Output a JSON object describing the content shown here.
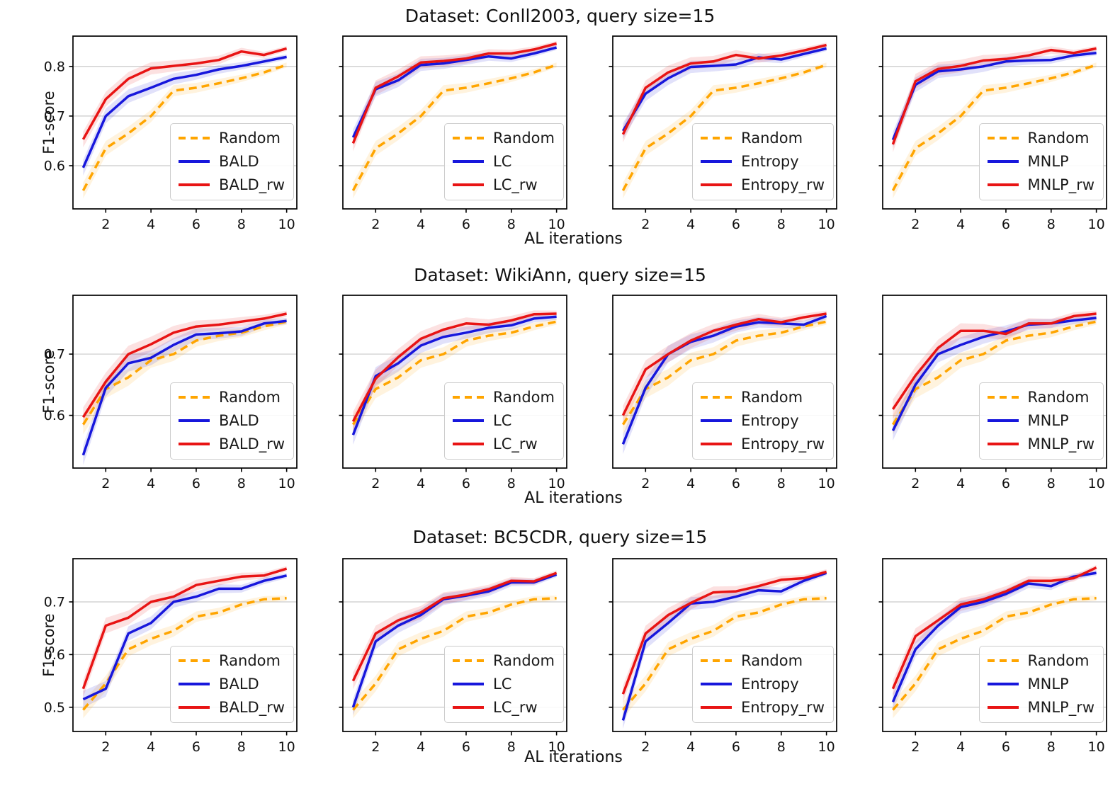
{
  "figure": {
    "x": [
      1,
      2,
      3,
      4,
      5,
      6,
      7,
      8,
      9,
      10
    ],
    "xticks": [
      2,
      4,
      6,
      8,
      10
    ],
    "colors": {
      "random": "#FFA500",
      "strategy": "#1717DC",
      "strategy_rw": "#E81414",
      "grid": "#c9c9c9",
      "axis": "#000000",
      "text": "#111111"
    }
  },
  "chart_data": [
    {
      "type": "line",
      "title": "Dataset: Conll2003, query size=15",
      "xlabel": "AL iterations",
      "ylabel": "F1-score",
      "x": [
        1,
        2,
        3,
        4,
        5,
        6,
        7,
        8,
        9,
        10
      ],
      "xlim": [
        0.55,
        10.45
      ],
      "ylim": [
        0.513,
        0.861
      ],
      "yticks": [
        0.6,
        0.7,
        0.8
      ],
      "grid": true,
      "legend_position": "lower right",
      "subplots": [
        {
          "legend": [
            "Random",
            "BALD",
            "BALD_rw"
          ],
          "series": [
            {
              "name": "Random",
              "color": "#FFA500",
              "dashed": true,
              "values": [
                0.55,
                0.635,
                0.665,
                0.7,
                0.751,
                0.757,
                0.766,
                0.776,
                0.788,
                0.803
              ]
            },
            {
              "name": "BALD",
              "color": "#1717DC",
              "dashed": false,
              "values": [
                0.596,
                0.7,
                0.74,
                0.757,
                0.775,
                0.783,
                0.794,
                0.801,
                0.81,
                0.819
              ]
            },
            {
              "name": "BALD_rw",
              "color": "#E81414",
              "dashed": false,
              "values": [
                0.653,
                0.734,
                0.775,
                0.796,
                0.801,
                0.806,
                0.813,
                0.83,
                0.823,
                0.836
              ]
            }
          ]
        },
        {
          "legend": [
            "Random",
            "LC",
            "LC_rw"
          ],
          "series": [
            {
              "name": "Random",
              "color": "#FFA500",
              "dashed": true,
              "values": [
                0.55,
                0.635,
                0.665,
                0.7,
                0.751,
                0.757,
                0.766,
                0.776,
                0.788,
                0.803
              ]
            },
            {
              "name": "LC",
              "color": "#1717DC",
              "dashed": false,
              "values": [
                0.657,
                0.754,
                0.772,
                0.803,
                0.806,
                0.813,
                0.82,
                0.816,
                0.826,
                0.838
              ]
            },
            {
              "name": "LC_rw",
              "color": "#E81414",
              "dashed": false,
              "values": [
                0.645,
                0.757,
                0.78,
                0.808,
                0.811,
                0.816,
                0.826,
                0.826,
                0.834,
                0.846
              ]
            }
          ]
        },
        {
          "legend": [
            "Random",
            "Entropy",
            "Entropy_rw"
          ],
          "series": [
            {
              "name": "Random",
              "color": "#FFA500",
              "dashed": true,
              "values": [
                0.55,
                0.635,
                0.665,
                0.7,
                0.751,
                0.757,
                0.766,
                0.776,
                0.788,
                0.803
              ]
            },
            {
              "name": "Entropy",
              "color": "#1717DC",
              "dashed": false,
              "values": [
                0.67,
                0.745,
                0.776,
                0.799,
                0.801,
                0.804,
                0.818,
                0.814,
                0.825,
                0.836
              ]
            },
            {
              "name": "Entropy_rw",
              "color": "#E81414",
              "dashed": false,
              "values": [
                0.663,
                0.757,
                0.788,
                0.806,
                0.81,
                0.823,
                0.816,
                0.822,
                0.832,
                0.843
              ]
            }
          ]
        },
        {
          "legend": [
            "Random",
            "MNLP",
            "MNLP_rw"
          ],
          "series": [
            {
              "name": "Random",
              "color": "#FFA500",
              "dashed": true,
              "values": [
                0.55,
                0.635,
                0.665,
                0.7,
                0.751,
                0.757,
                0.766,
                0.776,
                0.788,
                0.803
              ]
            },
            {
              "name": "MNLP",
              "color": "#1717DC",
              "dashed": false,
              "values": [
                0.652,
                0.763,
                0.79,
                0.794,
                0.8,
                0.81,
                0.812,
                0.813,
                0.822,
                0.827
              ]
            },
            {
              "name": "MNLP_rw",
              "color": "#E81414",
              "dashed": false,
              "values": [
                0.643,
                0.77,
                0.795,
                0.801,
                0.812,
                0.815,
                0.822,
                0.833,
                0.827,
                0.836
              ]
            }
          ]
        }
      ]
    },
    {
      "type": "line",
      "title": "Dataset: WikiAnn, query size=15",
      "xlabel": "AL iterations",
      "ylabel": "F1-score",
      "x": [
        1,
        2,
        3,
        4,
        5,
        6,
        7,
        8,
        9,
        10
      ],
      "xlim": [
        0.55,
        10.45
      ],
      "ylim": [
        0.514,
        0.796
      ],
      "yticks": [
        0.6,
        0.7
      ],
      "grid": true,
      "legend_position": "lower right",
      "subplots": [
        {
          "legend": [
            "Random",
            "BALD",
            "BALD_rw"
          ],
          "series": [
            {
              "name": "Random",
              "color": "#FFA500",
              "dashed": true,
              "values": [
                0.585,
                0.643,
                0.662,
                0.69,
                0.7,
                0.722,
                0.73,
                0.735,
                0.745,
                0.753
              ]
            },
            {
              "name": "BALD",
              "color": "#1717DC",
              "dashed": false,
              "values": [
                0.535,
                0.645,
                0.685,
                0.694,
                0.715,
                0.732,
                0.734,
                0.737,
                0.75,
                0.754
              ]
            },
            {
              "name": "BALD_rw",
              "color": "#E81414",
              "dashed": false,
              "values": [
                0.597,
                0.655,
                0.7,
                0.716,
                0.735,
                0.745,
                0.748,
                0.753,
                0.758,
                0.766
              ]
            }
          ]
        },
        {
          "legend": [
            "Random",
            "LC",
            "LC_rw"
          ],
          "series": [
            {
              "name": "Random",
              "color": "#FFA500",
              "dashed": true,
              "values": [
                0.585,
                0.643,
                0.662,
                0.69,
                0.7,
                0.722,
                0.73,
                0.735,
                0.745,
                0.753
              ]
            },
            {
              "name": "LC",
              "color": "#1717DC",
              "dashed": false,
              "values": [
                0.568,
                0.664,
                0.685,
                0.714,
                0.728,
                0.735,
                0.743,
                0.747,
                0.758,
                0.761
              ]
            },
            {
              "name": "LC_rw",
              "color": "#E81414",
              "dashed": false,
              "values": [
                0.59,
                0.66,
                0.695,
                0.725,
                0.74,
                0.75,
                0.748,
                0.755,
                0.765,
                0.766
              ]
            }
          ]
        },
        {
          "legend": [
            "Random",
            "Entropy",
            "Entropy_rw"
          ],
          "series": [
            {
              "name": "Random",
              "color": "#FFA500",
              "dashed": true,
              "values": [
                0.585,
                0.643,
                0.662,
                0.69,
                0.7,
                0.722,
                0.73,
                0.735,
                0.745,
                0.753
              ]
            },
            {
              "name": "Entropy",
              "color": "#1717DC",
              "dashed": false,
              "values": [
                0.553,
                0.645,
                0.7,
                0.72,
                0.73,
                0.745,
                0.752,
                0.75,
                0.748,
                0.762
              ]
            },
            {
              "name": "Entropy_rw",
              "color": "#E81414",
              "dashed": false,
              "values": [
                0.6,
                0.675,
                0.7,
                0.722,
                0.738,
                0.748,
                0.757,
                0.752,
                0.76,
                0.766
              ]
            }
          ]
        },
        {
          "legend": [
            "Random",
            "MNLP",
            "MNLP_rw"
          ],
          "series": [
            {
              "name": "Random",
              "color": "#FFA500",
              "dashed": true,
              "values": [
                0.585,
                0.643,
                0.662,
                0.69,
                0.7,
                0.722,
                0.73,
                0.735,
                0.745,
                0.753
              ]
            },
            {
              "name": "MNLP",
              "color": "#1717DC",
              "dashed": false,
              "values": [
                0.575,
                0.65,
                0.7,
                0.715,
                0.728,
                0.737,
                0.748,
                0.75,
                0.755,
                0.759
              ]
            },
            {
              "name": "MNLP_rw",
              "color": "#E81414",
              "dashed": false,
              "values": [
                0.61,
                0.665,
                0.71,
                0.738,
                0.738,
                0.733,
                0.75,
                0.75,
                0.762,
                0.766
              ]
            }
          ]
        }
      ]
    },
    {
      "type": "line",
      "title": "Dataset: BC5CDR, query size=15",
      "xlabel": "AL iterations",
      "ylabel": "F1-score",
      "x": [
        1,
        2,
        3,
        4,
        5,
        6,
        7,
        8,
        9,
        10
      ],
      "xlim": [
        0.55,
        10.45
      ],
      "ylim": [
        0.454,
        0.782
      ],
      "yticks": [
        0.5,
        0.6,
        0.7
      ],
      "grid": true,
      "legend_position": "lower right",
      "subplots": [
        {
          "legend": [
            "Random",
            "BALD",
            "BALD_rw"
          ],
          "series": [
            {
              "name": "Random",
              "color": "#FFA500",
              "dashed": true,
              "values": [
                0.495,
                0.545,
                0.61,
                0.63,
                0.645,
                0.672,
                0.68,
                0.695,
                0.705,
                0.707
              ]
            },
            {
              "name": "BALD",
              "color": "#1717DC",
              "dashed": false,
              "values": [
                0.515,
                0.535,
                0.64,
                0.66,
                0.7,
                0.71,
                0.725,
                0.725,
                0.74,
                0.75
              ]
            },
            {
              "name": "BALD_rw",
              "color": "#E81414",
              "dashed": false,
              "values": [
                0.535,
                0.655,
                0.67,
                0.7,
                0.71,
                0.732,
                0.74,
                0.748,
                0.75,
                0.763
              ]
            }
          ]
        },
        {
          "legend": [
            "Random",
            "LC",
            "LC_rw"
          ],
          "series": [
            {
              "name": "Random",
              "color": "#FFA500",
              "dashed": true,
              "values": [
                0.495,
                0.545,
                0.61,
                0.63,
                0.645,
                0.672,
                0.68,
                0.695,
                0.705,
                0.707
              ]
            },
            {
              "name": "LC",
              "color": "#1717DC",
              "dashed": false,
              "values": [
                0.5,
                0.625,
                0.655,
                0.675,
                0.705,
                0.712,
                0.72,
                0.737,
                0.737,
                0.752
              ]
            },
            {
              "name": "LC_rw",
              "color": "#E81414",
              "dashed": false,
              "values": [
                0.55,
                0.64,
                0.665,
                0.68,
                0.707,
                0.714,
                0.724,
                0.74,
                0.739,
                0.755
              ]
            }
          ]
        },
        {
          "legend": [
            "Random",
            "Entropy",
            "Entropy_rw"
          ],
          "series": [
            {
              "name": "Random",
              "color": "#FFA500",
              "dashed": true,
              "values": [
                0.495,
                0.545,
                0.61,
                0.63,
                0.645,
                0.672,
                0.68,
                0.695,
                0.705,
                0.707
              ]
            },
            {
              "name": "Entropy",
              "color": "#1717DC",
              "dashed": false,
              "values": [
                0.475,
                0.625,
                0.66,
                0.697,
                0.7,
                0.71,
                0.722,
                0.72,
                0.74,
                0.755
              ]
            },
            {
              "name": "Entropy_rw",
              "color": "#E81414",
              "dashed": false,
              "values": [
                0.525,
                0.64,
                0.675,
                0.698,
                0.718,
                0.72,
                0.73,
                0.742,
                0.745,
                0.757
              ]
            }
          ]
        },
        {
          "legend": [
            "Random",
            "MNLP",
            "MNLP_rw"
          ],
          "series": [
            {
              "name": "Random",
              "color": "#FFA500",
              "dashed": true,
              "values": [
                0.495,
                0.545,
                0.61,
                0.63,
                0.645,
                0.672,
                0.68,
                0.695,
                0.705,
                0.707
              ]
            },
            {
              "name": "MNLP",
              "color": "#1717DC",
              "dashed": false,
              "values": [
                0.51,
                0.61,
                0.655,
                0.69,
                0.7,
                0.715,
                0.735,
                0.73,
                0.748,
                0.755
              ]
            },
            {
              "name": "MNLP_rw",
              "color": "#E81414",
              "dashed": false,
              "values": [
                0.535,
                0.635,
                0.665,
                0.695,
                0.705,
                0.72,
                0.74,
                0.74,
                0.745,
                0.765
              ]
            }
          ]
        }
      ]
    }
  ]
}
